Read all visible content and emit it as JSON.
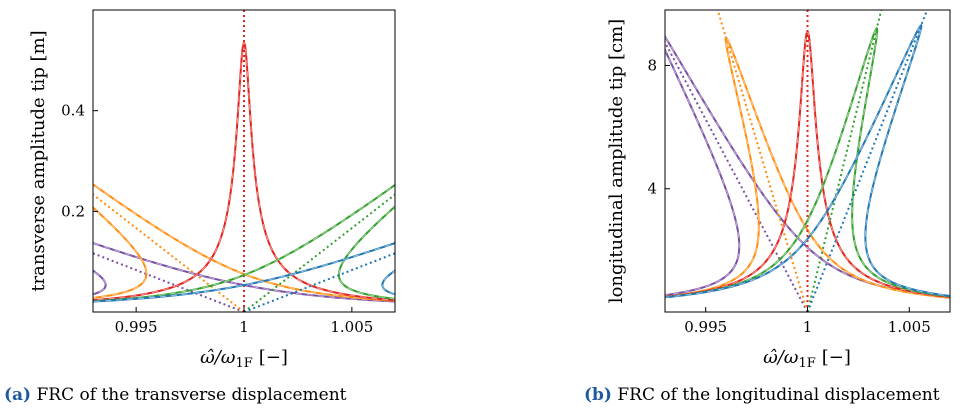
{
  "chart_data": [
    {
      "id": "a",
      "type": "line",
      "caption_tag": "(a)",
      "caption_text": "FRC of the transverse displacement",
      "xlabel": "ω̂/ω1F [−]",
      "ylabel": "transverse amplitude tip [m]",
      "xlim": [
        0.993,
        1.007
      ],
      "ylim": [
        0.0,
        0.6
      ],
      "xticks": [
        0.995,
        1,
        1.005
      ],
      "xtick_labels": [
        "0.995",
        "1",
        "1.005"
      ],
      "yticks": [
        0.2,
        0.4
      ],
      "ytick_labels": [
        "0.2",
        "0.4"
      ],
      "grid": false,
      "curve_params": {
        "base_amp": 0.03,
        "floor": 0.002,
        "shift": 0.00205
      },
      "series": [
        {
          "color": "#7b4fa6",
          "kappa": -0.06,
          "amp": 0.56
        },
        {
          "color": "#ff8c0a",
          "kappa": -0.03,
          "amp": 0.56
        },
        {
          "color": "#e3231c",
          "kappa": 0.0,
          "amp": 0.535
        },
        {
          "color": "#33a02c",
          "kappa": 0.03,
          "amp": 0.53
        },
        {
          "color": "#1f77b4",
          "kappa": 0.06,
          "amp": 0.56
        }
      ]
    },
    {
      "id": "b",
      "type": "line",
      "caption_tag": "(b)",
      "caption_text": "FRC of the longitudinal displacement",
      "xlabel": "ω̂/ω1F [−]",
      "ylabel": "longitudinal amplitude tip [cm]",
      "xlim": [
        0.993,
        1.007
      ],
      "ylim": [
        0.0,
        9.8
      ],
      "xticks": [
        0.995,
        1,
        1.005
      ],
      "xtick_labels": [
        "0.995",
        "1",
        "1.005"
      ],
      "yticks": [
        4,
        8
      ],
      "ytick_labels": [
        "4",
        "8"
      ],
      "grid": false,
      "curve_params": {
        "base_amp": 0.1,
        "floor": 0.002,
        "shift": 0.0025
      },
      "series": [
        {
          "color": "#7b4fa6",
          "kappa": -0.0008,
          "amp": 9.6
        },
        {
          "color": "#ff8c0a",
          "kappa": -0.00045,
          "amp": 8.9
        },
        {
          "color": "#e3231c",
          "kappa": 0.0,
          "amp": 9.1
        },
        {
          "color": "#33a02c",
          "kappa": 0.00037,
          "amp": 9.2
        },
        {
          "color": "#1f77b4",
          "kappa": 0.0006,
          "amp": 9.3
        }
      ]
    }
  ]
}
